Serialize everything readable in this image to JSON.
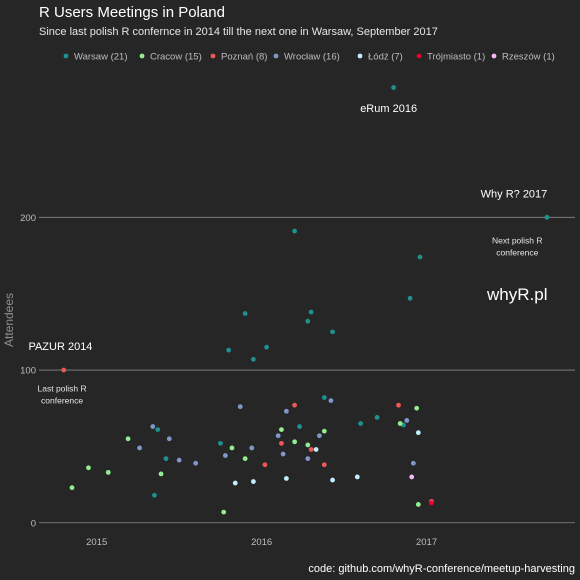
{
  "chart_data": {
    "type": "scatter",
    "title": "R Users Meetings in Poland",
    "subtitle": "Since last polish R confernce in 2014 till the next one in Warsaw, September 2017",
    "ylabel": "Attendees",
    "xlabel": "",
    "caption": "code: github.com/whyR-conference/meetup-harvesting",
    "x_ticks": [
      "2015",
      "2016",
      "2017"
    ],
    "y_ticks": [
      "0",
      "100",
      "200"
    ],
    "ylim": [
      -8,
      303
    ],
    "xlim": [
      2014.65,
      2017.9
    ],
    "grid": "horizontal",
    "legend_position": "top",
    "series": [
      {
        "name": "Warsaw (21)",
        "color": "#1f9090",
        "points": [
          {
            "x": 2015.37,
            "y": 61
          },
          {
            "x": 2015.35,
            "y": 18
          },
          {
            "x": 2015.42,
            "y": 42
          },
          {
            "x": 2015.8,
            "y": 113
          },
          {
            "x": 2015.9,
            "y": 137
          },
          {
            "x": 2015.95,
            "y": 107
          },
          {
            "x": 2016.03,
            "y": 115
          },
          {
            "x": 2016.2,
            "y": 191
          },
          {
            "x": 2016.3,
            "y": 138
          },
          {
            "x": 2016.28,
            "y": 132
          },
          {
            "x": 2016.43,
            "y": 125
          },
          {
            "x": 2016.38,
            "y": 82
          },
          {
            "x": 2016.23,
            "y": 63
          },
          {
            "x": 2016.6,
            "y": 65
          },
          {
            "x": 2016.7,
            "y": 69
          },
          {
            "x": 2016.86,
            "y": 64
          },
          {
            "x": 2016.9,
            "y": 147
          },
          {
            "x": 2016.96,
            "y": 174
          },
          {
            "x": 2016.8,
            "y": 285
          },
          {
            "x": 2017.73,
            "y": 200
          },
          {
            "x": 2015.75,
            "y": 52
          }
        ]
      },
      {
        "name": "Cracow (15)",
        "color": "#90ee90",
        "points": [
          {
            "x": 2014.85,
            "y": 23
          },
          {
            "x": 2014.95,
            "y": 36
          },
          {
            "x": 2015.07,
            "y": 33
          },
          {
            "x": 2015.19,
            "y": 55
          },
          {
            "x": 2015.39,
            "y": 32
          },
          {
            "x": 2015.77,
            "y": 7
          },
          {
            "x": 2015.82,
            "y": 49
          },
          {
            "x": 2015.9,
            "y": 42
          },
          {
            "x": 2016.12,
            "y": 61
          },
          {
            "x": 2016.2,
            "y": 53
          },
          {
            "x": 2016.28,
            "y": 51
          },
          {
            "x": 2016.38,
            "y": 60
          },
          {
            "x": 2016.84,
            "y": 65
          },
          {
            "x": 2016.94,
            "y": 75
          },
          {
            "x": 2016.95,
            "y": 12
          }
        ]
      },
      {
        "name": "Poznań (8)",
        "color": "#f25757",
        "points": [
          {
            "x": 2014.8,
            "y": 100
          },
          {
            "x": 2016.02,
            "y": 38
          },
          {
            "x": 2016.12,
            "y": 52
          },
          {
            "x": 2016.2,
            "y": 77
          },
          {
            "x": 2016.3,
            "y": 48
          },
          {
            "x": 2016.38,
            "y": 38
          },
          {
            "x": 2016.83,
            "y": 77
          },
          {
            "x": 2017.03,
            "y": 14
          }
        ]
      },
      {
        "name": "Wrocław (16)",
        "color": "#7f98c9",
        "points": [
          {
            "x": 2015.26,
            "y": 49
          },
          {
            "x": 2015.34,
            "y": 63
          },
          {
            "x": 2015.44,
            "y": 55
          },
          {
            "x": 2015.5,
            "y": 41
          },
          {
            "x": 2015.6,
            "y": 39
          },
          {
            "x": 2015.78,
            "y": 44
          },
          {
            "x": 2015.87,
            "y": 76
          },
          {
            "x": 2015.94,
            "y": 49
          },
          {
            "x": 2016.1,
            "y": 57
          },
          {
            "x": 2016.15,
            "y": 73
          },
          {
            "x": 2016.28,
            "y": 42
          },
          {
            "x": 2016.35,
            "y": 57
          },
          {
            "x": 2016.42,
            "y": 80
          },
          {
            "x": 2016.88,
            "y": 67
          },
          {
            "x": 2016.92,
            "y": 39
          },
          {
            "x": 2016.13,
            "y": 45
          }
        ]
      },
      {
        "name": "Łódź (7)",
        "color": "#bfefff",
        "points": [
          {
            "x": 2015.84,
            "y": 26
          },
          {
            "x": 2015.95,
            "y": 27
          },
          {
            "x": 2016.15,
            "y": 29
          },
          {
            "x": 2016.33,
            "y": 48
          },
          {
            "x": 2016.43,
            "y": 28
          },
          {
            "x": 2016.95,
            "y": 59
          },
          {
            "x": 2016.58,
            "y": 30
          }
        ]
      },
      {
        "name": "Trójmiasto (1)",
        "color": "#e8002e",
        "points": [
          {
            "x": 2017.03,
            "y": 13
          }
        ]
      },
      {
        "name": "Rzeszów (1)",
        "color": "#f5b8f0",
        "points": [
          {
            "x": 2016.91,
            "y": 30
          }
        ]
      }
    ],
    "annotations": [
      {
        "text": "eRum 2016",
        "kind": "big",
        "x": 2016.77,
        "y": 269
      },
      {
        "text": "Why R? 2017",
        "kind": "big",
        "x": 2017.53,
        "y": 213
      },
      {
        "text": "Next polish R",
        "kind": "small",
        "x": 2017.55,
        "y": 183
      },
      {
        "text": "conference",
        "kind": "small",
        "x": 2017.55,
        "y": 175
      },
      {
        "text": "whyR.pl",
        "kind": "brand",
        "x": 2017.55,
        "y": 146
      },
      {
        "text": "PAZUR 2014",
        "kind": "big",
        "x": 2014.78,
        "y": 113
      },
      {
        "text": "Last polish R",
        "kind": "small",
        "x": 2014.79,
        "y": 86
      },
      {
        "text": "conference",
        "kind": "small",
        "x": 2014.79,
        "y": 78
      }
    ]
  }
}
